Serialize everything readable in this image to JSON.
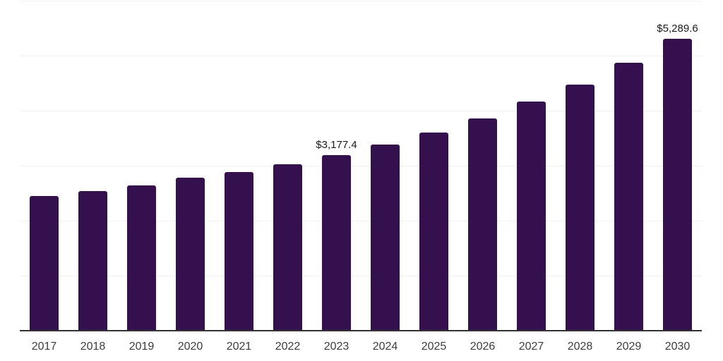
{
  "chart_data": {
    "type": "bar",
    "title": "",
    "xlabel": "",
    "ylabel": "",
    "categories": [
      "2017",
      "2018",
      "2019",
      "2020",
      "2021",
      "2022",
      "2023",
      "2024",
      "2025",
      "2026",
      "2027",
      "2028",
      "2029",
      "2030"
    ],
    "values": [
      2430,
      2523,
      2626,
      2763,
      2866,
      3013,
      3177.4,
      3372,
      3592,
      3852,
      4151,
      4459,
      4857,
      5289.6
    ],
    "data_labels": [
      null,
      null,
      null,
      null,
      null,
      null,
      "$3,177.4",
      null,
      null,
      null,
      null,
      null,
      null,
      "$5,289.6"
    ],
    "ylim": [
      0,
      6000
    ],
    "gridline_interval": 1000,
    "grid": true,
    "y_tick_labels_visible": false,
    "legend_position": "none",
    "colors": {
      "bar": "#34114E",
      "axis_line": "#333333",
      "gridline": "#f1f1f1",
      "value_label": "#1a1a1a",
      "tick_label": "#3d3d3d",
      "background": "#ffffff"
    }
  }
}
